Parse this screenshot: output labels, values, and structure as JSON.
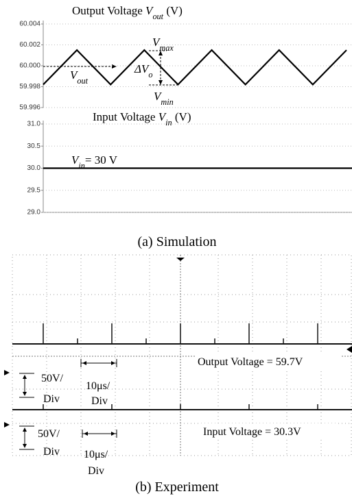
{
  "chart_data": [
    {
      "type": "line",
      "title": [
        {
          "t": "Output Voltage "
        },
        {
          "t": "V",
          "style": "italic"
        },
        {
          "t": "out",
          "style": "sub"
        },
        {
          "t": " (V)"
        }
      ],
      "categories": [
        null,
        null,
        null,
        null,
        null,
        null,
        null,
        null,
        null,
        null
      ],
      "series": [
        {
          "color": "#000000",
          "values": [
            59.9982,
            60.0015,
            59.9982,
            60.0015,
            59.9982,
            60.0015,
            59.9982,
            60.0015,
            59.9982,
            60.0015
          ]
        }
      ],
      "ylim": [
        59.996,
        60.004
      ],
      "yticks": [
        59.996,
        59.998,
        {
          "value": 60.0,
          "label": "60.000"
        },
        60.002,
        60.004
      ],
      "grid": true,
      "annotations": [
        [
          {
            "t": "V",
            "style": "italic"
          },
          {
            "t": "max",
            "style": "sub"
          }
        ],
        [
          {
            "t": "ΔV",
            "style": "italic"
          },
          {
            "t": "o",
            "style": "sub"
          }
        ],
        [
          {
            "t": "V",
            "style": "italic"
          },
          {
            "t": "min",
            "style": "sub"
          }
        ],
        [
          {
            "t": "V",
            "style": "italic"
          },
          {
            "t": "out",
            "style": "sub"
          }
        ]
      ]
    },
    {
      "type": "line",
      "title": [
        {
          "t": "Input Voltage "
        },
        {
          "t": "V",
          "style": "italic"
        },
        {
          "t": "in",
          "style": "sub"
        },
        {
          "t": " (V)"
        }
      ],
      "categories": [
        null,
        null
      ],
      "series": [
        {
          "color": "#000000",
          "values": [
            30,
            30
          ]
        }
      ],
      "ylim": [
        29,
        31
      ],
      "yticks": [
        {
          "value": 29,
          "label": "29.0"
        },
        29.5,
        {
          "value": 30,
          "label": "30.0"
        },
        30.5,
        {
          "value": 31,
          "label": "31.0"
        }
      ],
      "grid": true,
      "annotations": [
        [
          {
            "t": "V",
            "style": "italic"
          },
          {
            "t": "in",
            "style": "sub"
          },
          {
            "t": "= 30 V"
          }
        ]
      ]
    }
  ],
  "captions": [
    "(a) Simulation",
    "(b) Experiment"
  ],
  "experiment": {
    "output_label": "Output Voltage = 59.7V",
    "input_label": "Input Voltage = 30.3V",
    "scale_labels": [
      [
        "50V/",
        "Div",
        "10μs/",
        "Div"
      ],
      [
        "50V/",
        "Div",
        "10μs/",
        "Div"
      ]
    ]
  }
}
